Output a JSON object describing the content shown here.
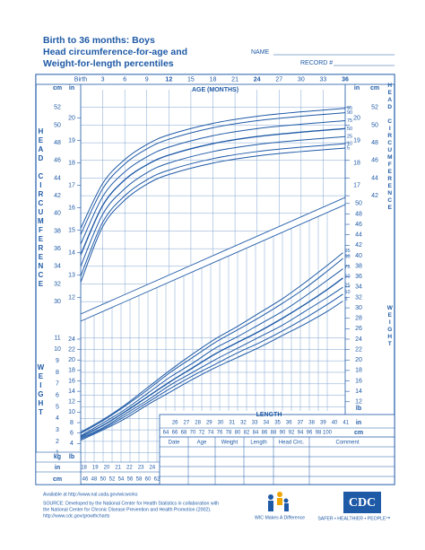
{
  "header": {
    "title_lines": [
      "Birth to 36 months: Boys",
      "Head circumference-for-age and",
      "Weight-for-length percentiles"
    ],
    "name_label": "NAME",
    "record_label": "RECORD #"
  },
  "chart_data": [
    {
      "type": "line",
      "y_label": "HEAD CIRCUMFERENCE",
      "x_label": "AGE (MONTHS)",
      "y_unit": "cm",
      "y2_unit": "in",
      "x": [
        0,
        3,
        6,
        9,
        12,
        18,
        24,
        30,
        36
      ],
      "xlim": [
        0,
        36
      ],
      "xticks": [
        {
          "value": 0,
          "label": "Birth"
        },
        3,
        6,
        9,
        12,
        15,
        18,
        21,
        24,
        27,
        30,
        33,
        36
      ],
      "ylim": [
        29,
        53.5
      ],
      "yticks": [
        30,
        32,
        34,
        36,
        38,
        40,
        42,
        44,
        46,
        48,
        50,
        52
      ],
      "y2lim": [
        11.42,
        21.06
      ],
      "y2ticks": [
        12,
        13,
        14,
        15,
        16,
        17,
        18,
        19,
        20
      ],
      "right_yticks": [
        42,
        44,
        46,
        48,
        50,
        52
      ],
      "right_y2ticks": [
        17,
        18,
        19,
        20
      ],
      "grid": true,
      "series": [
        {
          "name": "95",
          "color": "#1f5aa6",
          "values": [
            38.3,
            43.4,
            46.1,
            47.8,
            48.9,
            50.2,
            51.0,
            51.5,
            51.9
          ]
        },
        {
          "name": "90",
          "color": "#1f5aa6",
          "values": [
            37.6,
            42.8,
            45.6,
            47.3,
            48.4,
            49.7,
            50.5,
            51.0,
            51.4
          ]
        },
        {
          "name": "75",
          "color": "#1f5aa6",
          "values": [
            36.5,
            41.9,
            44.7,
            46.4,
            47.5,
            48.8,
            49.6,
            50.1,
            50.5
          ]
        },
        {
          "name": "50",
          "color": "#1f5aa6",
          "values": [
            35.3,
            40.9,
            43.8,
            45.5,
            46.6,
            47.9,
            48.7,
            49.2,
            49.6
          ]
        },
        {
          "name": "25",
          "color": "#1f5aa6",
          "values": [
            34.0,
            39.9,
            42.8,
            44.6,
            45.7,
            47.0,
            47.8,
            48.3,
            48.7
          ]
        },
        {
          "name": "10",
          "color": "#1f5aa6",
          "values": [
            32.9,
            39.0,
            42.0,
            43.8,
            44.9,
            46.2,
            47.0,
            47.5,
            47.9
          ]
        },
        {
          "name": "5",
          "color": "#1f5aa6",
          "values": [
            32.2,
            38.5,
            41.5,
            43.3,
            44.4,
            45.7,
            46.5,
            47.0,
            47.4
          ]
        }
      ]
    },
    {
      "type": "line",
      "y_label": "WEIGHT",
      "x_label": "LENGTH",
      "y_unit": "kg",
      "y2_unit": "lb",
      "x_unit": "cm",
      "x2_unit": "in",
      "x": [
        45,
        50,
        55,
        60,
        65,
        70,
        75,
        80,
        85,
        90,
        95,
        100,
        103.5
      ],
      "xlim": [
        45,
        104
      ],
      "xticks": [
        46,
        48,
        50,
        52,
        54,
        56,
        58,
        60,
        62,
        64,
        66,
        68,
        70,
        72,
        74,
        76,
        78,
        80,
        82,
        84,
        86,
        88,
        90,
        92,
        94,
        96,
        98,
        100
      ],
      "x2lim": [
        17.72,
        40.94
      ],
      "x2ticks": [
        18,
        19,
        20,
        21,
        22,
        23,
        24,
        26,
        27,
        28,
        29,
        30,
        31,
        32,
        33,
        34,
        35,
        36,
        37,
        38,
        39,
        40,
        41
      ],
      "ylim": [
        0.2,
        25
      ],
      "yticks": [
        1,
        2,
        3,
        4,
        5,
        6,
        7,
        8,
        9,
        10,
        11
      ],
      "y2lim": [
        0.44,
        55.12
      ],
      "y2ticks": [
        4,
        6,
        8,
        10,
        12,
        14,
        16,
        18,
        20,
        22,
        24
      ],
      "right_y2ticks": [
        12,
        14,
        16,
        18,
        20,
        22,
        24,
        26,
        28,
        30,
        32,
        34,
        36,
        38,
        40,
        42,
        44,
        46,
        48,
        50
      ],
      "grid": true,
      "series": [
        {
          "name": "95",
          "color": "#1f5aa6",
          "values": [
            2.8,
            3.9,
            5.2,
            6.7,
            8.2,
            9.6,
            10.9,
            12.0,
            13.2,
            14.4,
            15.8,
            17.3,
            18.4
          ]
        },
        {
          "name": "90",
          "color": "#1f5aa6",
          "values": [
            2.7,
            3.8,
            5.1,
            6.5,
            8.0,
            9.3,
            10.6,
            11.7,
            12.8,
            14.0,
            15.3,
            16.8,
            17.9
          ]
        },
        {
          "name": "75",
          "color": "#1f5aa6",
          "values": [
            2.5,
            3.6,
            4.8,
            6.2,
            7.6,
            8.8,
            10.1,
            11.1,
            12.2,
            13.3,
            14.6,
            16.0,
            17.0
          ]
        },
        {
          "name": "50",
          "color": "#1f5aa6",
          "values": [
            2.4,
            3.4,
            4.6,
            5.9,
            7.2,
            8.4,
            9.6,
            10.6,
            11.6,
            12.7,
            13.9,
            15.2,
            16.2
          ]
        },
        {
          "name": "25",
          "color": "#1f5aa6",
          "values": [
            2.3,
            3.2,
            4.4,
            5.6,
            6.9,
            8.0,
            9.1,
            10.1,
            11.1,
            12.1,
            13.3,
            14.5,
            15.4
          ]
        },
        {
          "name": "10",
          "color": "#1f5aa6",
          "values": [
            2.2,
            3.1,
            4.2,
            5.4,
            6.6,
            7.7,
            8.7,
            9.7,
            10.6,
            11.6,
            12.7,
            13.9,
            14.8
          ]
        },
        {
          "name": "5",
          "color": "#1f5aa6",
          "values": [
            2.1,
            3.0,
            4.0,
            5.2,
            6.3,
            7.4,
            8.4,
            9.3,
            10.2,
            11.2,
            12.2,
            13.3,
            14.2
          ]
        }
      ]
    }
  ],
  "table": {
    "columns": [
      "Date",
      "Age",
      "Weight",
      "Length",
      "Head Circ.",
      "Comment"
    ]
  },
  "footer": {
    "available": "Available at http://www.nal.usda.gov/wicworks",
    "source_1": "SOURCE: Developed by the National Center for Health Statistics in collaboration with",
    "source_2": "the National Center for Chronic Disease Prevention and Health Promotion (2002).",
    "url": "http://www.cdc.gov/growthcharts",
    "wic": "WIC Makes A Difference",
    "cdc": "CDC",
    "tagline": "SAFER • HEALTHIER • PEOPLE™"
  }
}
